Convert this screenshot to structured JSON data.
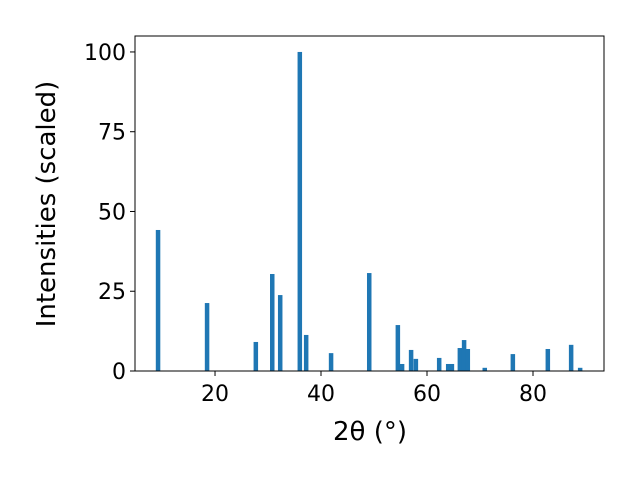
{
  "chart_data": {
    "type": "bar",
    "xlabel": "2θ (°)",
    "ylabel": "Intensities (scaled)",
    "x": [
      9.25,
      18.5,
      27.7,
      30.8,
      32.3,
      36.0,
      37.2,
      41.9,
      49.1,
      54.5,
      55.3,
      57.0,
      57.9,
      62.3,
      64.0,
      64.7,
      66.2,
      67.0,
      67.7,
      70.9,
      76.2,
      82.8,
      87.2,
      88.9
    ],
    "values": [
      44.2,
      21.3,
      9.1,
      30.4,
      23.8,
      100,
      11.3,
      5.6,
      30.7,
      14.4,
      2.2,
      6.6,
      3.8,
      4.1,
      2.2,
      2.2,
      7.2,
      9.7,
      6.9,
      1.0,
      5.3,
      6.9,
      8.2,
      1.0
    ],
    "color": "#1f77b4",
    "xlim": [
      4.9,
      93.4
    ],
    "xticks": [
      20,
      40,
      60,
      80
    ],
    "ylim": [
      0,
      105
    ],
    "yticks": [
      0,
      25,
      50,
      75,
      100
    ]
  }
}
